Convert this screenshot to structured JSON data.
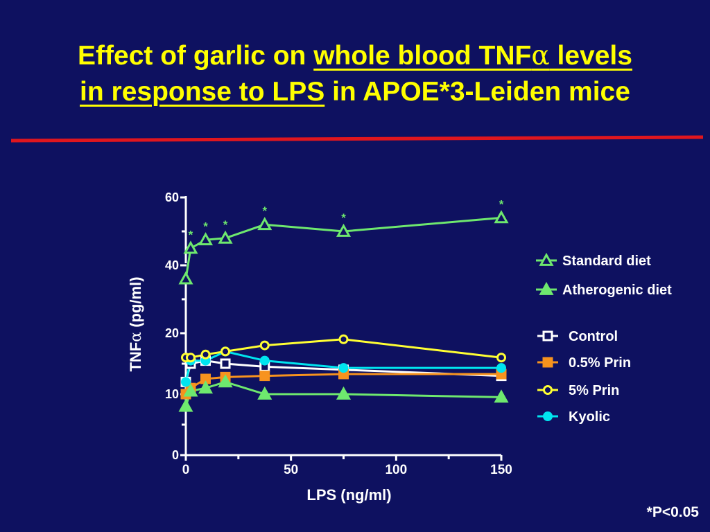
{
  "title": {
    "part1": "Effect of garlic on ",
    "part2_underlined": "whole blood TNF",
    "alpha": "α",
    "part3_underlined": " levels",
    "part4_underlined": "in response to LPS",
    "part5": " in APOE*3-Leiden mice"
  },
  "footnote": "*P<0.05",
  "colors": {
    "background": "#0e1160",
    "title": "#ffff00",
    "divider": "#e0161e",
    "axis": "#ffffff",
    "green": "#6ee86e",
    "white": "#ffffff",
    "orange": "#f7931e",
    "yellow": "#ffff33",
    "cyan": "#00e5ef"
  },
  "chart_data": {
    "type": "line",
    "xlabel": "LPS (ng/ml)",
    "ylabel_prefix": "TNF",
    "ylabel_alpha": "α",
    "ylabel_suffix": " (pg/ml)",
    "xlim": [
      0,
      150
    ],
    "ylim_ticks": [
      0,
      10,
      20,
      40,
      60
    ],
    "x_ticks": [
      "0",
      "50",
      "100",
      "150"
    ],
    "y_tick_labels": [
      "0",
      "10",
      "20",
      "40",
      "60"
    ],
    "axis_break": "between 20 and 40",
    "legend_position": "right",
    "series": [
      {
        "name": "Standard diet",
        "marker": "triangle-open",
        "color": "#6ee86e",
        "x": [
          0,
          2.3,
          9.4,
          18.8,
          37.5,
          75,
          150
        ],
        "y": [
          36,
          45,
          47.5,
          48,
          52,
          50,
          54
        ],
        "significance": [
          "",
          "*",
          "*",
          "*",
          "*",
          "*",
          "*"
        ]
      },
      {
        "name": "Atherogenic diet",
        "marker": "triangle-filled",
        "color": "#6ee86e",
        "x": [
          0,
          2.3,
          9.4,
          18.8,
          37.5,
          75,
          150
        ],
        "y": [
          8,
          10.5,
          11,
          12,
          10,
          10,
          9.5
        ]
      },
      {
        "name": "Control",
        "marker": "square-open",
        "color": "#ffffff",
        "x": [
          0,
          2.3,
          9.4,
          18.8,
          37.5,
          75,
          150
        ],
        "y": [
          12,
          15,
          15.5,
          15,
          14.5,
          14,
          13
        ]
      },
      {
        "name": "0.5% Prin",
        "marker": "square-filled",
        "color": "#f7931e",
        "x": [
          0,
          2.3,
          9.4,
          18.8,
          37.5,
          75,
          150
        ],
        "y": [
          10,
          11,
          12.5,
          12.8,
          13,
          13.3,
          13.3
        ]
      },
      {
        "name": "5% Prin",
        "marker": "circle-open",
        "color": "#ffff33",
        "x": [
          0,
          2.3,
          9.4,
          18.8,
          37.5,
          75,
          150
        ],
        "y": [
          16,
          16,
          16.5,
          17,
          18,
          19,
          16
        ]
      },
      {
        "name": "Kyolic",
        "marker": "circle-filled",
        "color": "#00e5ef",
        "x": [
          0,
          2.3,
          9.4,
          18.8,
          37.5,
          75,
          150
        ],
        "y": [
          12,
          15.5,
          15.5,
          17,
          15.5,
          14.3,
          14.3
        ]
      }
    ]
  }
}
